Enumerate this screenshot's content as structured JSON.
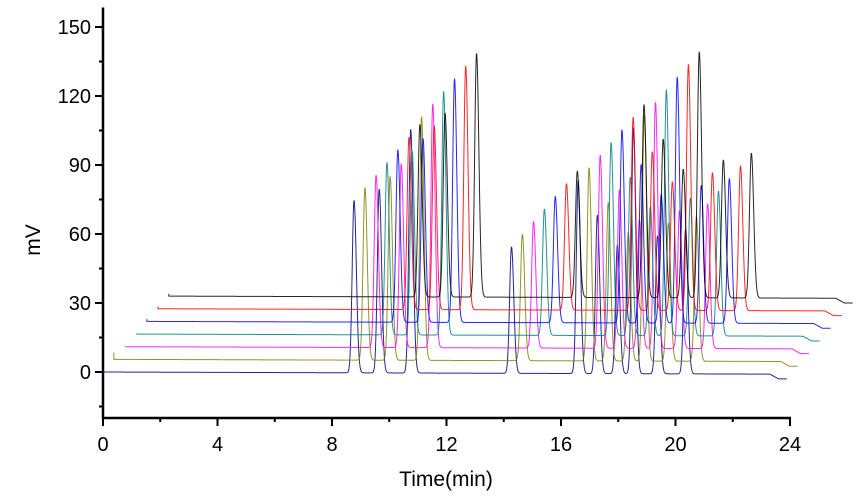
{
  "chart_data": {
    "type": "line",
    "title": "",
    "xlabel": "Time(min)",
    "ylabel": "mV",
    "xlim": [
      0,
      24
    ],
    "ylim": [
      -20,
      155
    ],
    "x_ticks": [
      0,
      4,
      8,
      12,
      16,
      20,
      24
    ],
    "y_ticks": [
      0,
      30,
      60,
      90,
      120,
      150
    ],
    "grid": false,
    "legend": "none",
    "layout": "waterfall (stacked, offset traces)",
    "base_trace": {
      "run_length_min": 23.9,
      "peaks": [
        {
          "time": 8.77,
          "height": 75
        },
        {
          "time": 9.65,
          "height": 80
        },
        {
          "time": 10.75,
          "height": 106
        },
        {
          "time": 14.27,
          "height": 55
        },
        {
          "time": 16.6,
          "height": 84
        },
        {
          "time": 17.27,
          "height": 69
        },
        {
          "time": 17.97,
          "height": 56
        },
        {
          "time": 18.53,
          "height": 107
        },
        {
          "time": 19.37,
          "height": 60
        },
        {
          "time": 20.35,
          "height": 63
        }
      ],
      "end_drop_time": 23.3,
      "end_drop_value": -3
    },
    "series": [
      {
        "color": "#000080",
        "x_offset": 0.0,
        "y_offset": 0.0
      },
      {
        "color": "#808000",
        "x_offset": 0.38,
        "y_offset": 5.5
      },
      {
        "color": "#ff00ff",
        "x_offset": 0.77,
        "y_offset": 11.0
      },
      {
        "color": "#008080",
        "x_offset": 1.15,
        "y_offset": 16.5
      },
      {
        "color": "#0000ff",
        "x_offset": 1.53,
        "y_offset": 22.0
      },
      {
        "color": "#ff0000",
        "x_offset": 1.92,
        "y_offset": 27.5
      },
      {
        "color": "#000000",
        "x_offset": 2.3,
        "y_offset": 33.0
      }
    ]
  }
}
